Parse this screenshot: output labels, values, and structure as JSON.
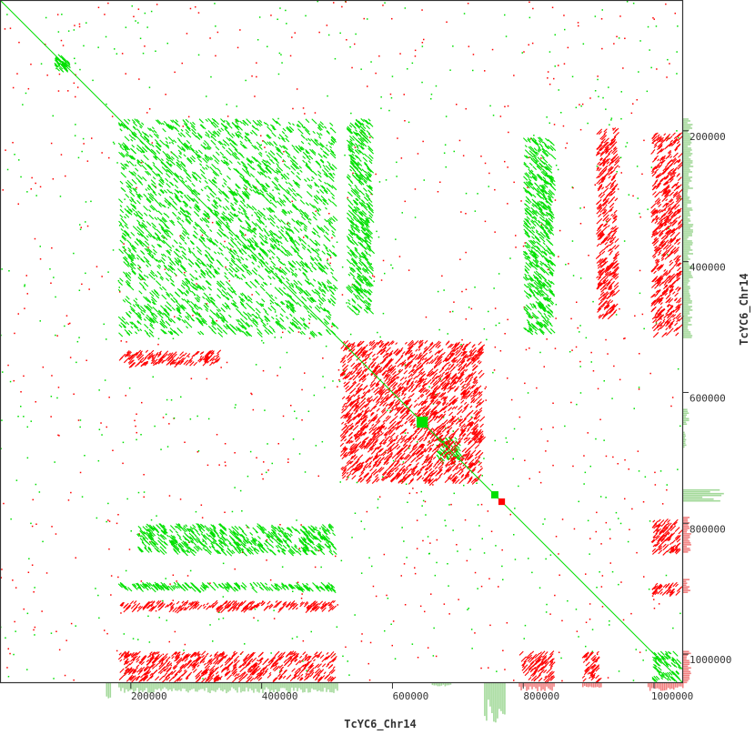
{
  "chart_data": {
    "type": "scatter",
    "subtype": "dot-plot self-alignment",
    "xlabel": "TcYC6_Chr14",
    "ylabel": "TcYC6_Chr14",
    "xlim": [
      0,
      1043000
    ],
    "ylim": [
      0,
      1043000
    ],
    "y_direction": "top-to-bottom",
    "x_ticks": [
      200000,
      400000,
      600000,
      800000,
      1000000
    ],
    "y_ticks": [
      200000,
      400000,
      600000,
      800000,
      1000000
    ],
    "x_tick_labels": [
      "200000",
      "400000",
      "600000",
      "800000",
      "1000000"
    ],
    "y_tick_labels": [
      "200000",
      "400000",
      "600000",
      "800000",
      "1000000"
    ],
    "grid": false,
    "colors": {
      "forward": "#00e000",
      "reverse": "#ff0000",
      "hist_forward": "#a3d99a",
      "hist_reverse": "#f28080",
      "axis": "#333333"
    },
    "diagonal": [
      [
        0,
        0
      ],
      [
        1043000,
        1043000
      ]
    ],
    "filled_squares": [
      {
        "x": [
          637000,
          654000
        ],
        "y": [
          637000,
          654000
        ],
        "strand": "+"
      },
      {
        "x": [
          751000,
          762000
        ],
        "y": [
          751000,
          762000
        ],
        "strand": "+"
      },
      {
        "x": [
          762000,
          772000
        ],
        "y": [
          762000,
          772000
        ],
        "strand": "-"
      }
    ],
    "repeat_blocks": [
      {
        "x": [
          181000,
          515000
        ],
        "y": [
          181000,
          515000
        ],
        "strand": "+"
      },
      {
        "x": [
          83000,
          111000
        ],
        "y": [
          83000,
          111000
        ],
        "strand": "+"
      },
      {
        "x": [
          667000,
          709000
        ],
        "y": [
          667000,
          709000
        ],
        "strand": "+"
      },
      {
        "x": [
          995000,
          1043000
        ],
        "y": [
          995000,
          1043000
        ],
        "strand": "+"
      },
      {
        "x": [
          800000,
          848000
        ],
        "y": [
          209000,
          515000
        ],
        "strand": "+"
      },
      {
        "x": [
          209000,
          515000
        ],
        "y": [
          800000,
          848000
        ],
        "strand": "+"
      },
      {
        "x": [
          181000,
          515000
        ],
        "y": [
          890000,
          904000
        ],
        "strand": "+"
      },
      {
        "x": [
          530000,
          570000
        ],
        "y": [
          181000,
          480000
        ],
        "strand": "+"
      },
      {
        "x": [
          995000,
          1043000
        ],
        "y": [
          202000,
          515000
        ],
        "strand": "-"
      },
      {
        "x": [
          911000,
          946000
        ],
        "y": [
          195000,
          487000
        ],
        "strand": "-"
      },
      {
        "x": [
          181000,
          515000
        ],
        "y": [
          995000,
          1043000
        ],
        "strand": "-"
      },
      {
        "x": [
          793000,
          848000
        ],
        "y": [
          995000,
          1043000
        ],
        "strand": "-"
      },
      {
        "x": [
          890000,
          918000
        ],
        "y": [
          995000,
          1043000
        ],
        "strand": "-"
      },
      {
        "x": [
          995000,
          1043000
        ],
        "y": [
          793000,
          848000
        ],
        "strand": "-"
      },
      {
        "x": [
          995000,
          1043000
        ],
        "y": [
          890000,
          911000
        ],
        "strand": "-"
      },
      {
        "x": [
          181000,
          515000
        ],
        "y": [
          918000,
          935000
        ],
        "strand": "-"
      },
      {
        "x": [
          181000,
          340000
        ],
        "y": [
          535000,
          560000
        ],
        "strand": "-"
      },
      {
        "x": [
          520000,
          740000
        ],
        "y": [
          520000,
          740000
        ],
        "strand": "-"
      }
    ],
    "coverage_x": [
      {
        "x": [
          181000,
          515000
        ],
        "value": 0.25,
        "strand": "+"
      },
      {
        "x": [
          162000,
          168000
        ],
        "value": 0.6,
        "strand": "+"
      },
      {
        "x": [
          660000,
          690000
        ],
        "value": 0.08,
        "strand": "+"
      },
      {
        "x": [
          740000,
          772000
        ],
        "value": 1.0,
        "strand": "+"
      },
      {
        "x": [
          793000,
          848000
        ],
        "value": 0.2,
        "strand": "-"
      },
      {
        "x": [
          890000,
          918000
        ],
        "value": 0.15,
        "strand": "-"
      },
      {
        "x": [
          990000,
          1043000
        ],
        "value": 0.2,
        "strand": "-"
      }
    ],
    "coverage_y": [
      {
        "y": [
          181000,
          515000
        ],
        "value": 0.25,
        "strand": "+"
      },
      {
        "y": [
          625000,
          650000
        ],
        "value": 0.15,
        "strand": "+"
      },
      {
        "y": [
          660000,
          683000
        ],
        "value": 0.08,
        "strand": "+"
      },
      {
        "y": [
          748000,
          765000
        ],
        "value": 1.0,
        "strand": "+"
      },
      {
        "y": [
          790000,
          845000
        ],
        "value": 0.2,
        "strand": "-"
      },
      {
        "y": [
          885000,
          905000
        ],
        "value": 0.18,
        "strand": "-"
      },
      {
        "y": [
          995000,
          1043000
        ],
        "value": 0.2,
        "strand": "-"
      }
    ]
  }
}
